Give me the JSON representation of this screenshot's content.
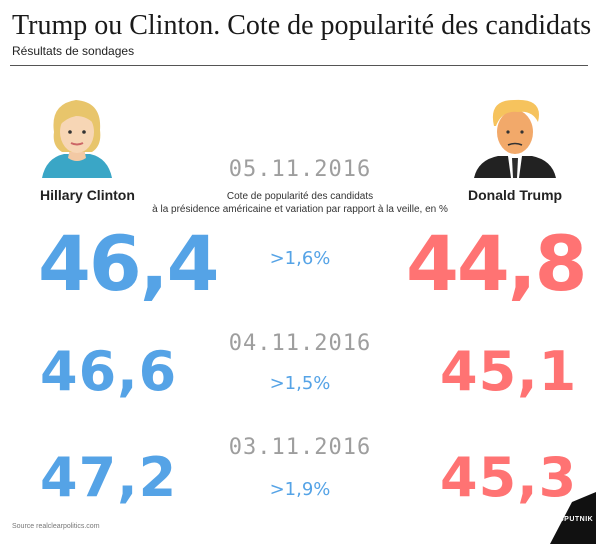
{
  "header": {
    "title": "Trump ou Clinton. Cote de popularité des candidats",
    "subtitle": "Résultats de sondages"
  },
  "candidates": {
    "left": "Hillary Clinton",
    "right": "Donald Trump"
  },
  "caption_line1": "Cote de popularité des candidats",
  "caption_line2": "à la présidence américaine et variation par rapport à la veille, en %",
  "rows": [
    {
      "date": "05.11.2016",
      "clinton": "46,4",
      "change": ">1,6%",
      "trump": "44,8"
    },
    {
      "date": "04.11.2016",
      "clinton": "46,6",
      "change": ">1,5%",
      "trump": "45,1"
    },
    {
      "date": "03.11.2016",
      "clinton": "47,2",
      "change": ">1,9%",
      "trump": "45,3"
    }
  ],
  "source": "Source realclearpolitics.com",
  "logo_text": "SPUTNIK",
  "colors": {
    "clinton": "#55a3e6",
    "trump": "#ff7373",
    "date": "#9e9e9e"
  }
}
